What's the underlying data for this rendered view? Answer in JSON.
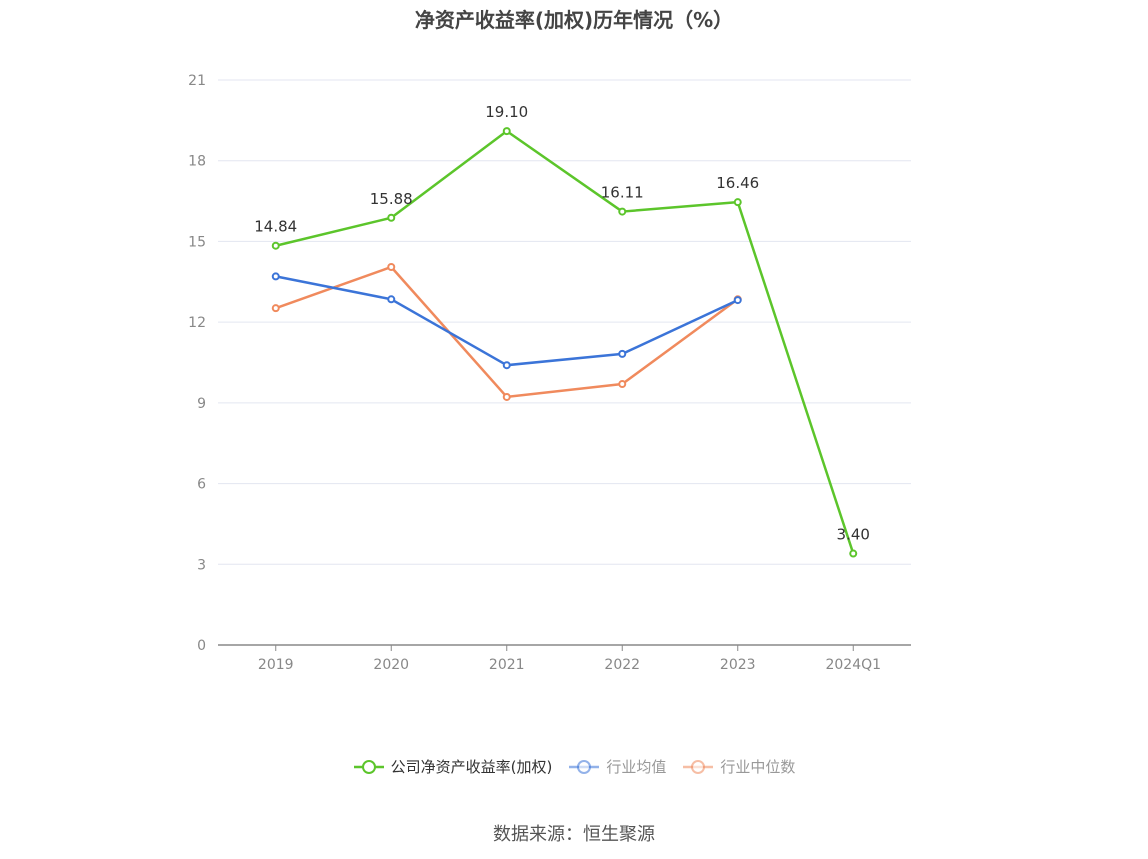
{
  "chart_data": {
    "type": "line",
    "title": "净资产收益率(加权)历年情况（%）",
    "categories": [
      "2019",
      "2020",
      "2021",
      "2022",
      "2023",
      "2024Q1"
    ],
    "ylim": [
      0,
      21
    ],
    "yticks": [
      0,
      3,
      6,
      9,
      12,
      15,
      18,
      21
    ],
    "grid": true,
    "legend_position": "bottom",
    "series": [
      {
        "name": "公司净资产收益率(加权)",
        "color": "#5cc52b",
        "values": [
          14.84,
          15.88,
          19.1,
          16.11,
          16.46,
          3.4
        ],
        "labels": [
          "14.84",
          "15.88",
          "19.10",
          "16.11",
          "16.46",
          "3.40"
        ],
        "legend_active": true
      },
      {
        "name": "行业均值",
        "color": "#3b74d8",
        "values": [
          13.7,
          12.85,
          10.4,
          10.82,
          12.82,
          null
        ],
        "legend_active": false
      },
      {
        "name": "行业中位数",
        "color": "#f08a5d",
        "values": [
          12.52,
          14.05,
          9.22,
          9.7,
          12.85,
          null
        ],
        "legend_active": false
      }
    ]
  },
  "source": "数据来源：恒生聚源"
}
